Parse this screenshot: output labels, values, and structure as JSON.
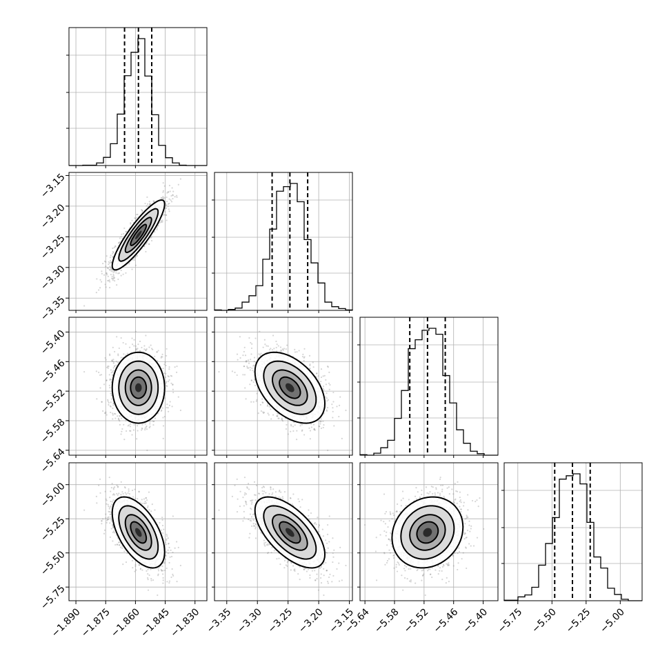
{
  "chart_data": {
    "type": "corner",
    "grid": true,
    "parameters": [
      {
        "mean": -1.8585,
        "std": 0.0066,
        "range": [
          -1.8935,
          -1.824
        ],
        "ticks": [
          -1.89,
          -1.875,
          -1.86,
          -1.845,
          -1.83
        ],
        "tick_labels": [
          "−1.890",
          "−1.875",
          "−1.860",
          "−1.845",
          "−1.830"
        ],
        "quantiles": [
          -1.8655,
          -1.8585,
          -1.8518
        ]
      },
      {
        "mean": -3.247,
        "std": 0.0285,
        "range": [
          -3.37,
          -3.145
        ],
        "ticks": [
          -3.35,
          -3.3,
          -3.25,
          -3.2,
          -3.15
        ],
        "tick_labels": [
          "−3.35",
          "−3.30",
          "−3.25",
          "−3.20",
          "−3.15"
        ],
        "quantiles": [
          -3.276,
          -3.247,
          -3.218
        ]
      },
      {
        "mean": -5.513,
        "std": 0.036,
        "range": [
          -5.65,
          -5.37
        ],
        "ticks": [
          -5.64,
          -5.58,
          -5.52,
          -5.46,
          -5.4
        ],
        "tick_labels": [
          "−5.64",
          "−5.58",
          "−5.52",
          "−5.46",
          "−5.40"
        ],
        "quantiles": [
          -5.549,
          -5.513,
          -5.477
        ]
      },
      {
        "mean": -5.35,
        "std": 0.13,
        "range": [
          -5.85,
          -4.84
        ],
        "ticks": [
          -5.75,
          -5.5,
          -5.25,
          -5.0
        ],
        "tick_labels": [
          "−5.75",
          "−5.50",
          "−5.25",
          "−5.00"
        ],
        "quantiles": [
          -5.48,
          -5.35,
          -5.22
        ]
      }
    ],
    "correlations": [
      [
        1.0,
        0.88,
        0.0,
        -0.55
      ],
      [
        0.88,
        1.0,
        -0.45,
        -0.62
      ],
      [
        0.0,
        -0.45,
        1.0,
        0.15
      ],
      [
        -0.55,
        -0.62,
        0.15,
        1.0
      ]
    ],
    "histogram_bins": 20,
    "scatter_points": 1800,
    "colors": {
      "line": "#000000",
      "points": "#888888",
      "grid": "#b0b0b0"
    }
  }
}
